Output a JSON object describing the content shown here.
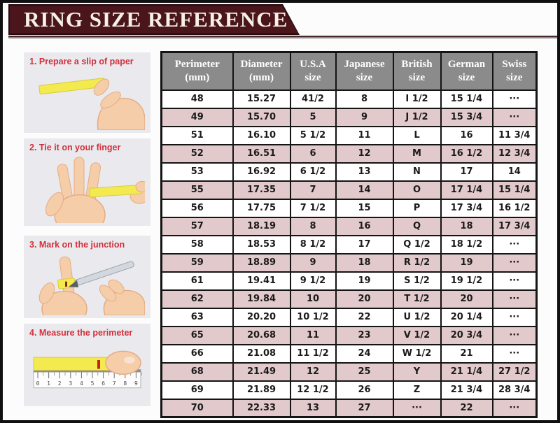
{
  "page": {
    "title": "RING SIZE REFERENCE"
  },
  "colors": {
    "banner_maroon": "#4a151b",
    "header_gray": "#8c8b8b",
    "row_alt_pink": "#e2c9cc",
    "accent_red": "#d2303a",
    "paper_yellow": "#f3ea4f"
  },
  "steps": [
    {
      "label": "1. Prepare a slip of paper",
      "illustration": "hand-holding-paper-slip"
    },
    {
      "label": "2. Tie it on your finger",
      "illustration": "paper-strip-wrapped-on-finger"
    },
    {
      "label": "3. Mark on the junction",
      "illustration": "pen-marking-junction"
    },
    {
      "label": "4. Measure the perimeter",
      "illustration": "ruler-measuring-strip"
    }
  ],
  "ruler": {
    "marks": [
      "0",
      "1",
      "2",
      "3",
      "4",
      "5",
      "6",
      "7",
      "8",
      "9"
    ]
  },
  "table": {
    "headers": [
      {
        "key": "perimeter",
        "title": "Perimeter",
        "sub": "(mm)"
      },
      {
        "key": "diameter",
        "title": "Diameter",
        "sub": "(mm)"
      },
      {
        "key": "usa",
        "title": "U.S.A",
        "sub": "size"
      },
      {
        "key": "japanese",
        "title": "Japanese",
        "sub": "size"
      },
      {
        "key": "british",
        "title": "British",
        "sub": "size"
      },
      {
        "key": "german",
        "title": "German",
        "sub": "size"
      },
      {
        "key": "swiss",
        "title": "Swiss",
        "sub": "size"
      }
    ],
    "rows": [
      [
        "48",
        "15.27",
        "41/2",
        "8",
        "I 1/2",
        "15 1/4",
        "···"
      ],
      [
        "49",
        "15.70",
        "5",
        "9",
        "J 1/2",
        "15 3/4",
        "···"
      ],
      [
        "51",
        "16.10",
        "5 1/2",
        "11",
        "L",
        "16",
        "11 3/4"
      ],
      [
        "52",
        "16.51",
        "6",
        "12",
        "M",
        "16 1/2",
        "12 3/4"
      ],
      [
        "53",
        "16.92",
        "6 1/2",
        "13",
        "N",
        "17",
        "14"
      ],
      [
        "55",
        "17.35",
        "7",
        "14",
        "O",
        "17 1/4",
        "15 1/4"
      ],
      [
        "56",
        "17.75",
        "7 1/2",
        "15",
        "P",
        "17 3/4",
        "16 1/2"
      ],
      [
        "57",
        "18.19",
        "8",
        "16",
        "Q",
        "18",
        "17 3/4"
      ],
      [
        "58",
        "18.53",
        "8 1/2",
        "17",
        "Q 1/2",
        "18 1/2",
        "···"
      ],
      [
        "59",
        "18.89",
        "9",
        "18",
        "R 1/2",
        "19",
        "···"
      ],
      [
        "61",
        "19.41",
        "9 1/2",
        "19",
        "S 1/2",
        "19 1/2",
        "···"
      ],
      [
        "62",
        "19.84",
        "10",
        "20",
        "T 1/2",
        "20",
        "···"
      ],
      [
        "63",
        "20.20",
        "10 1/2",
        "22",
        "U 1/2",
        "20 1/4",
        "···"
      ],
      [
        "65",
        "20.68",
        "11",
        "23",
        "V 1/2",
        "20 3/4",
        "···"
      ],
      [
        "66",
        "21.08",
        "11 1/2",
        "24",
        "W 1/2",
        "21",
        "···"
      ],
      [
        "68",
        "21.49",
        "12",
        "25",
        "Y",
        "21 1/4",
        "27 1/2"
      ],
      [
        "69",
        "21.89",
        "12 1/2",
        "26",
        "Z",
        "21 3/4",
        "28 3/4"
      ],
      [
        "70",
        "22.33",
        "13",
        "27",
        "···",
        "22",
        "···"
      ]
    ]
  }
}
